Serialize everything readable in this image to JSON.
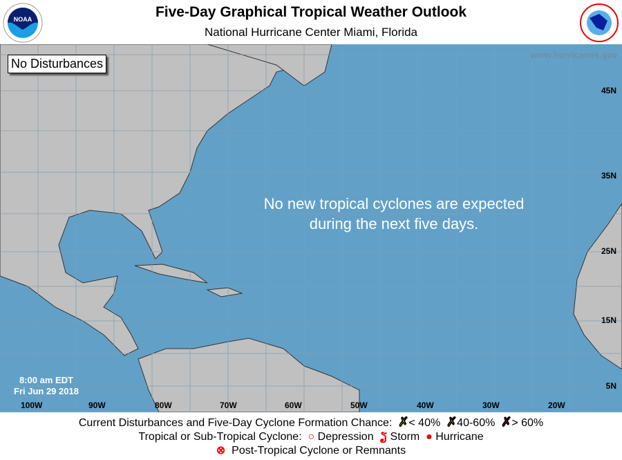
{
  "header": {
    "title": "Five-Day Graphical Tropical Weather Outlook",
    "subtitle": "National Hurricane Center  Miami, Florida",
    "left_logo": "NOAA",
    "right_logo": "NATIONAL WEATHER SERVICE"
  },
  "map": {
    "status_box": "No Disturbances",
    "website": "www.hurricanes.gov",
    "message_line1": "No new tropical cyclones are expected",
    "message_line2": "during the next five days.",
    "time": "8:00 am EDT",
    "date": "Fri Jun 29 2018",
    "lat_labels": [
      "45N",
      "35N",
      "25N",
      "15N",
      "5N"
    ],
    "lon_labels": [
      "100W",
      "90W",
      "80W",
      "70W",
      "60W",
      "50W",
      "40W",
      "30W",
      "20W"
    ],
    "colors": {
      "ocean": "#62a0c8",
      "land": "#c0c0c0"
    }
  },
  "legend": {
    "line1_label": "Current Disturbances and Five-Day Cyclone Formation Chance:",
    "low": "< 40%",
    "mid": "40-60%",
    "high": "> 60%",
    "low_color": "#ffff00",
    "mid_color": "#ff9900",
    "high_color": "#ff0000",
    "line2_label": "Tropical or Sub-Tropical Cyclone:",
    "depression": "Depression",
    "storm": "Storm",
    "hurricane": "Hurricane",
    "post_tropical": "Post-Tropical Cyclone or Remnants"
  }
}
